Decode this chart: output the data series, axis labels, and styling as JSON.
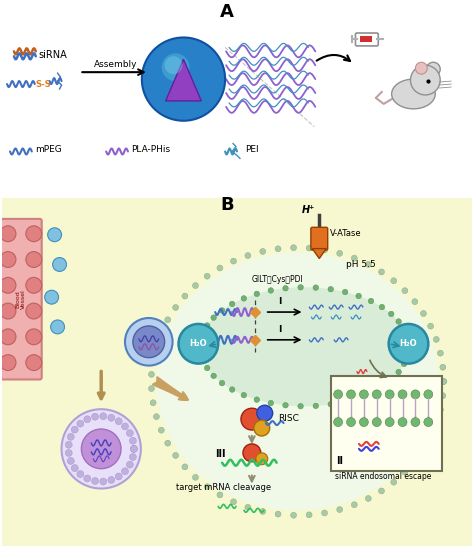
{
  "title": "",
  "bg_color": "#ffffff",
  "panel_A_label": "A",
  "panel_B_label": "B",
  "section_A": {
    "labels": {
      "siRNA": "siRNA",
      "assembly": "Assembly",
      "mPEG": "mPEG",
      "PLA_PHis": "PLA-PHis",
      "PEI": "PEI"
    }
  },
  "section_B": {
    "labels": {
      "H2O_left": "H₂O",
      "H2O_right": "H₂O",
      "VATPase": "V-ATase",
      "H_plus": "H⁺",
      "pH": "pH 5.5",
      "GILT_Cys_PDI": "GILT、Cys、PDI",
      "step_I_1": "I",
      "step_I_2": "I",
      "step_II": "II",
      "step_III": "III",
      "RISC": "RISC",
      "target_mRNA": "target mRNA cleavage",
      "siRNA_escape": "siRNA endosomal escape",
      "blood_vessel": "Blood Vessel"
    }
  },
  "colors": {
    "blue_light": "#5bb8d4",
    "blue_dark": "#2060a0",
    "purple": "#8050c0",
    "orange": "#e06010",
    "yellow_bg": "#f8f8d0",
    "pink_bg": "#f8d8d8",
    "endosome_fill": "#d8ecd8",
    "membrane_color": "#80b880"
  }
}
